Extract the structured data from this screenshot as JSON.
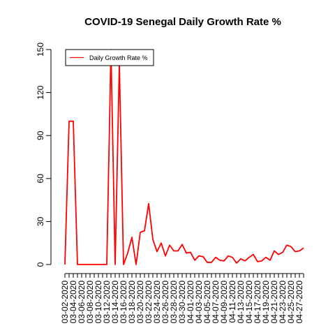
{
  "chart_data": {
    "type": "line",
    "title": "COVID-19 Senegal Daily Growth Rate %",
    "xlabel": "",
    "ylabel": "",
    "ylim": [
      0,
      150
    ],
    "y_ticks": [
      0,
      30,
      60,
      90,
      120,
      150
    ],
    "legend": {
      "position": "top-left",
      "entries": [
        "Daily Growth Rate %"
      ]
    },
    "grid": false,
    "x_tick_labels": [
      "03-02-2020",
      "03-04-2020",
      "03-06-2020",
      "03-08-2020",
      "03-10-2020",
      "03-12-2020",
      "03-14-2020",
      "03-16-2020",
      "03-18-2020",
      "03-20-2020",
      "03-22-2020",
      "03-24-2020",
      "03-26-2020",
      "03-28-2020",
      "03-30-2020",
      "04-01-2020",
      "04-03-2020",
      "04-05-2020",
      "04-07-2020",
      "04-09-2020",
      "04-11-2020",
      "04-13-2020",
      "04-15-2020",
      "04-17-2020",
      "04-19-2020",
      "04-21-2020",
      "04-23-2020",
      "04-25-2020",
      "04-27-2020"
    ],
    "series": [
      {
        "name": "Daily Growth Rate %",
        "color": "#ff0000",
        "x": [
          "03-02-2020",
          "03-03-2020",
          "03-04-2020",
          "03-05-2020",
          "03-06-2020",
          "03-07-2020",
          "03-08-2020",
          "03-09-2020",
          "03-10-2020",
          "03-11-2020",
          "03-12-2020",
          "03-13-2020",
          "03-14-2020",
          "03-15-2020",
          "03-16-2020",
          "03-17-2020",
          "03-18-2020",
          "03-19-2020",
          "03-20-2020",
          "03-21-2020",
          "03-22-2020",
          "03-23-2020",
          "03-24-2020",
          "03-25-2020",
          "03-26-2020",
          "03-27-2020",
          "03-28-2020",
          "03-29-2020",
          "03-30-2020",
          "03-31-2020",
          "04-01-2020",
          "04-02-2020",
          "04-03-2020",
          "04-04-2020",
          "04-05-2020",
          "04-06-2020",
          "04-07-2020",
          "04-08-2020",
          "04-09-2020",
          "04-10-2020",
          "04-11-2020",
          "04-12-2020",
          "04-13-2020",
          "04-14-2020",
          "04-15-2020",
          "04-16-2020",
          "04-17-2020",
          "04-18-2020",
          "04-19-2020",
          "04-20-2020",
          "04-21-2020",
          "04-22-2020",
          "04-23-2020",
          "04-24-2020",
          "04-25-2020",
          "04-26-2020",
          "04-27-2020",
          "04-28-2020"
        ],
        "values": [
          0,
          100,
          100,
          0,
          0,
          0,
          0,
          0,
          0,
          0,
          0,
          150,
          0,
          140,
          0,
          8,
          19,
          0,
          22.5,
          23.5,
          42.5,
          17.5,
          9,
          15,
          6,
          13.5,
          9.5,
          9.5,
          14,
          8,
          8.5,
          3,
          6,
          5.5,
          1.5,
          1.5,
          5,
          3,
          2.5,
          6,
          5,
          1,
          4,
          2.5,
          5,
          7,
          2,
          2.5,
          5,
          3,
          9.5,
          7,
          8.5,
          13.5,
          12.5,
          9,
          9.5,
          11.5
        ]
      }
    ]
  }
}
